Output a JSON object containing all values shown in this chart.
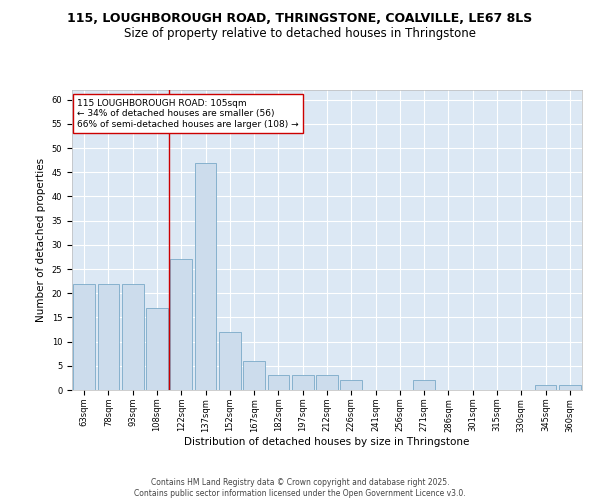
{
  "title_line1": "115, LOUGHBOROUGH ROAD, THRINGSTONE, COALVILLE, LE67 8LS",
  "title_line2": "Size of property relative to detached houses in Thringstone",
  "categories": [
    "63sqm",
    "78sqm",
    "93sqm",
    "108sqm",
    "122sqm",
    "137sqm",
    "152sqm",
    "167sqm",
    "182sqm",
    "197sqm",
    "212sqm",
    "226sqm",
    "241sqm",
    "256sqm",
    "271sqm",
    "286sqm",
    "301sqm",
    "315sqm",
    "330sqm",
    "345sqm",
    "360sqm"
  ],
  "values": [
    22,
    22,
    22,
    17,
    27,
    47,
    12,
    6,
    3,
    3,
    3,
    2,
    0,
    0,
    2,
    0,
    0,
    0,
    0,
    1,
    1
  ],
  "bar_color": "#ccdcec",
  "bar_edge_color": "#7aaac8",
  "bar_edge_width": 0.6,
  "background_color": "#ffffff",
  "plot_bg_color": "#dce8f4",
  "grid_color": "#ffffff",
  "ylabel": "Number of detached properties",
  "xlabel": "Distribution of detached houses by size in Thringstone",
  "ylim": [
    0,
    62
  ],
  "yticks": [
    0,
    5,
    10,
    15,
    20,
    25,
    30,
    35,
    40,
    45,
    50,
    55,
    60
  ],
  "vline_x_index": 3.5,
  "vline_color": "#cc0000",
  "annotation_text": "115 LOUGHBOROUGH ROAD: 105sqm\n← 34% of detached houses are smaller (56)\n66% of semi-detached houses are larger (108) →",
  "annotation_box_color": "#ffffff",
  "annotation_box_edge_color": "#cc0000",
  "footer_line1": "Contains HM Land Registry data © Crown copyright and database right 2025.",
  "footer_line2": "Contains public sector information licensed under the Open Government Licence v3.0.",
  "title_fontsize": 9,
  "subtitle_fontsize": 8.5,
  "ylabel_fontsize": 7.5,
  "xlabel_fontsize": 7.5,
  "tick_fontsize": 6,
  "annotation_fontsize": 6.5,
  "footer_fontsize": 5.5
}
